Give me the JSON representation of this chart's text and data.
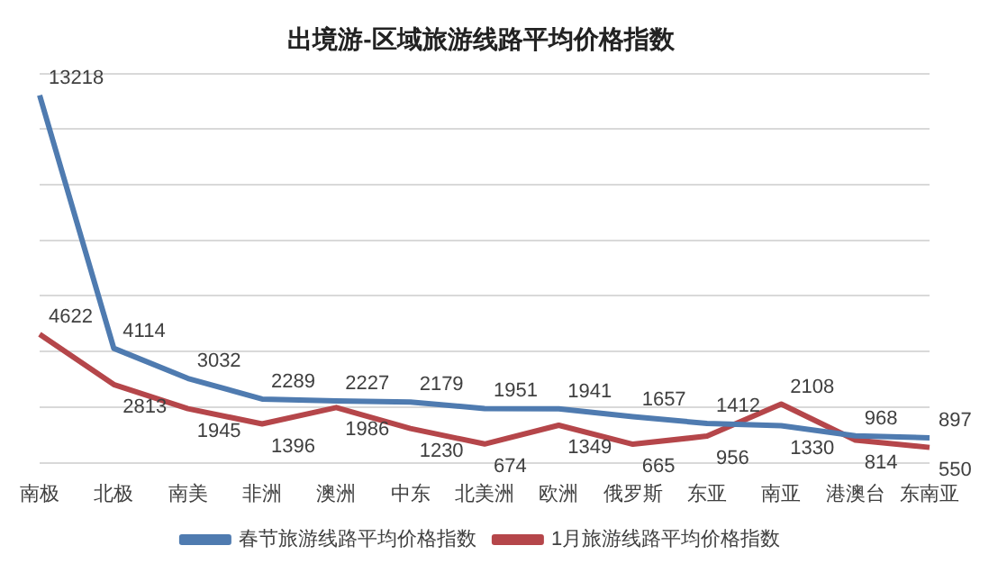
{
  "chart_data": {
    "type": "line",
    "title": "出境游-区域旅游线路平均价格指数",
    "categories": [
      "南极",
      "北极",
      "南美",
      "非洲",
      "澳洲",
      "中东",
      "北美洲",
      "欧洲",
      "俄罗斯",
      "东亚",
      "南亚",
      "港澳台",
      "东南亚"
    ],
    "series": [
      {
        "name": "春节旅游线路平均价格指数",
        "color": "#4f7bb0",
        "values": [
          13218,
          4114,
          3032,
          2289,
          2227,
          2179,
          1951,
          1941,
          1657,
          1412,
          1330,
          968,
          897
        ]
      },
      {
        "name": "1月旅游线路平均价格指数",
        "color": "#b5464a",
        "values": [
          4622,
          2813,
          1945,
          1396,
          1986,
          1230,
          674,
          1349,
          665,
          956,
          2108,
          814,
          550
        ]
      }
    ],
    "ylim": [
      0,
      14000
    ],
    "yticks": [
      {
        "value": 0,
        "label": null
      },
      {
        "value": 2000,
        "label": null
      },
      {
        "value": 4000,
        "label": null
      },
      {
        "value": 6000,
        "label": null
      },
      {
        "value": 8000,
        "label": null
      },
      {
        "value": 10000,
        "label": null
      },
      {
        "value": 12000,
        "label": null
      },
      {
        "value": 14000,
        "label": null
      }
    ],
    "tick_labels": "x",
    "grid": "y",
    "legend": "bottom",
    "marker": "none",
    "line_style": "solid",
    "data_labels": true
  }
}
